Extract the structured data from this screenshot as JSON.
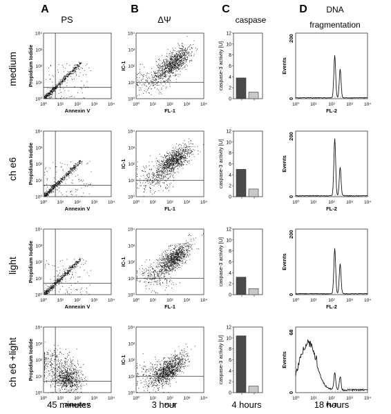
{
  "panels": {
    "A": {
      "letter": "A",
      "title": "PS",
      "time": "45 minutes"
    },
    "B": {
      "letter": "B",
      "title": "ΔΨ",
      "time": "3 hour"
    },
    "C": {
      "letter": "C",
      "title": "caspase",
      "time": "4 hours"
    },
    "D": {
      "letter": "D",
      "title_line1": "DNA",
      "title_line2": "fragmentation",
      "time": "18 hours"
    }
  },
  "rows": [
    {
      "label": "medium"
    },
    {
      "label": "ch e6"
    },
    {
      "label": "light"
    },
    {
      "label": "ch e6 +light"
    }
  ],
  "colors": {
    "dark_bar": "#4a4a4a",
    "light_bar": "#c8c8c8",
    "dots": "#111111"
  },
  "chart_data": [
    {
      "type": "scatter",
      "panel": "A",
      "xlabel": "Annexin V",
      "ylabel": "Propidium Iodide",
      "xscale": "log",
      "yscale": "log",
      "xlim": [
        1,
        10000
      ],
      "ylim": [
        1,
        10000
      ],
      "tick_labels": [
        "10⁰",
        "10¹",
        "10²",
        "10³",
        "10⁴"
      ],
      "quadrant_gate": {
        "x": 5,
        "y": 5
      },
      "distribution_by_row": [
        "diagonal",
        "diagonal",
        "diagonal",
        "double-negative cluster"
      ]
    },
    {
      "type": "scatter",
      "panel": "B",
      "xlabel": "FL-1",
      "ylabel": "IC-1",
      "xscale": "log",
      "yscale": "log",
      "xlim": [
        1,
        10000
      ],
      "ylim": [
        1,
        10000
      ],
      "tick_labels": [
        "10⁰",
        "10¹",
        "10²",
        "10³",
        "10⁴"
      ],
      "gate_y": 10
    },
    {
      "type": "bar",
      "panel": "C",
      "ylabel": "caspase-3 activity [U]",
      "ylim": [
        0,
        12
      ],
      "yticks": [
        0,
        2,
        4,
        6,
        8,
        10,
        12
      ],
      "rows": [
        {
          "row": "medium",
          "values": [
            3.8,
            1.2
          ]
        },
        {
          "row": "ch e6",
          "values": [
            5.0,
            1.4
          ]
        },
        {
          "row": "light",
          "values": [
            3.2,
            1.1
          ]
        },
        {
          "row": "ch e6 +light",
          "values": [
            10.4,
            1.2
          ]
        }
      ]
    },
    {
      "type": "line",
      "panel": "D",
      "xlabel": "FL-2",
      "ylabel": "Events",
      "xscale": "log",
      "xlim": [
        1,
        10000
      ],
      "tick_labels": [
        "10⁰",
        "10¹",
        "10²",
        "10³",
        "10⁴"
      ],
      "rows": [
        {
          "row": "medium",
          "ymax": 200,
          "yticks": [
            0,
            200
          ],
          "peaks": [
            {
              "x": 150,
              "y": 140
            },
            {
              "x": 300,
              "y": 95
            }
          ]
        },
        {
          "row": "ch e6",
          "ymax": 200,
          "yticks": [
            0,
            200
          ],
          "peaks": [
            {
              "x": 150,
              "y": 190
            },
            {
              "x": 300,
              "y": 95
            }
          ]
        },
        {
          "row": "light",
          "ymax": 200,
          "yticks": [
            0,
            200
          ],
          "peaks": [
            {
              "x": 150,
              "y": 150
            },
            {
              "x": 300,
              "y": 100
            }
          ]
        },
        {
          "row": "ch e6 +light",
          "ymax": 68,
          "yticks": [
            0,
            68
          ],
          "peaks": [
            {
              "x": 5,
              "y": 50
            },
            {
              "x": 150,
              "y": 20
            },
            {
              "x": 300,
              "y": 15
            }
          ]
        }
      ]
    }
  ]
}
